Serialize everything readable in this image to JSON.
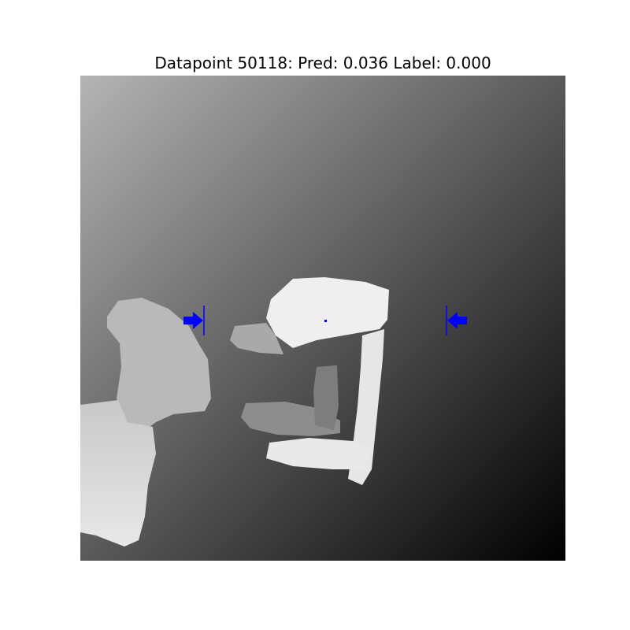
{
  "title": "Datapoint 50118: Pred: 0.036 Label: 0.000",
  "image": {
    "description_icon": "depth-image",
    "marker_color": "#0000ff"
  }
}
